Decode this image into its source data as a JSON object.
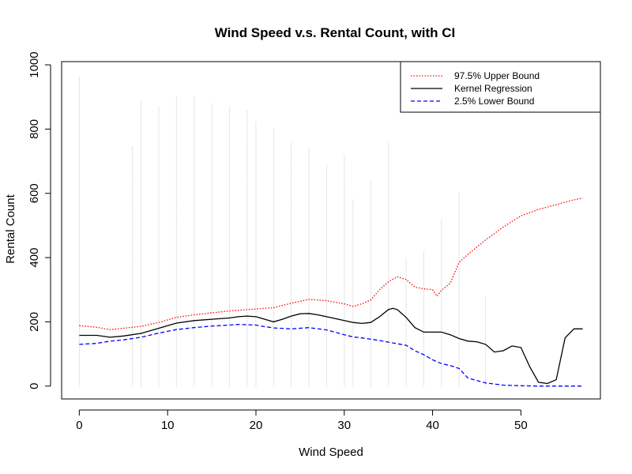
{
  "chart_data": {
    "type": "line",
    "title": "Wind Speed v.s. Rental Count, with CI",
    "xlabel": "Wind Speed",
    "ylabel": "Rental Count",
    "xlim": [
      -2,
      59
    ],
    "ylim": [
      -40,
      1010
    ],
    "xticks": [
      0,
      10,
      20,
      30,
      40,
      50
    ],
    "yticks": [
      0,
      200,
      400,
      600,
      800,
      1000
    ],
    "xtick_labels": [
      "0",
      "10",
      "20",
      "30",
      "40",
      "50"
    ],
    "ytick_labels": [
      "0",
      "200",
      "400",
      "600",
      "800",
      "1000"
    ],
    "legend_position": "top-right",
    "grid": false,
    "series": [
      {
        "name": "97.5% Upper Bound",
        "color": "#ff0000",
        "style": "dotted",
        "x": [
          0,
          2,
          3.5,
          5,
          7,
          9,
          11,
          13,
          15,
          17,
          19,
          20,
          21,
          22,
          24,
          26,
          28,
          30,
          31,
          32,
          33,
          34,
          35,
          36,
          37,
          38,
          39,
          40,
          40.5,
          41,
          42,
          43,
          44,
          46,
          48,
          50,
          52,
          54,
          56,
          57
        ],
        "y": [
          188,
          183,
          176,
          180,
          186,
          198,
          214,
          222,
          228,
          234,
          238,
          240,
          242,
          244,
          258,
          270,
          266,
          256,
          248,
          256,
          268,
          300,
          325,
          340,
          332,
          308,
          303,
          300,
          280,
          298,
          320,
          385,
          410,
          455,
          495,
          530,
          550,
          565,
          580,
          585
        ]
      },
      {
        "name": "Kernel Regression",
        "color": "#000000",
        "style": "solid",
        "x": [
          0,
          2,
          3.5,
          5,
          7,
          9,
          11,
          13,
          15,
          17,
          18,
          19,
          20,
          21,
          22,
          23,
          24,
          25,
          26,
          27,
          28,
          30,
          31,
          32,
          33,
          34,
          35,
          35.5,
          36,
          37,
          38,
          39,
          40,
          41,
          42,
          43,
          44,
          45,
          46,
          47,
          48,
          49,
          50,
          51,
          52,
          53,
          54,
          55,
          56,
          57
        ],
        "y": [
          158,
          158,
          152,
          156,
          164,
          180,
          196,
          204,
          208,
          212,
          216,
          218,
          216,
          208,
          200,
          208,
          218,
          225,
          226,
          222,
          216,
          204,
          198,
          195,
          198,
          216,
          238,
          242,
          238,
          214,
          182,
          168,
          168,
          168,
          160,
          148,
          140,
          138,
          130,
          106,
          110,
          125,
          120,
          60,
          12,
          8,
          20,
          150,
          178,
          178
        ]
      },
      {
        "name": "2.5% Lower Bound",
        "color": "#0000ff",
        "style": "dashed",
        "x": [
          0,
          2,
          3.5,
          5,
          7,
          9,
          11,
          13,
          15,
          17,
          18,
          20,
          21,
          22,
          24,
          26,
          28,
          30,
          31,
          32,
          34,
          36,
          37,
          38,
          39,
          40,
          41,
          42,
          43,
          44,
          46,
          48,
          50,
          52,
          54,
          56,
          57
        ],
        "y": [
          130,
          133,
          140,
          144,
          152,
          165,
          176,
          182,
          187,
          190,
          192,
          190,
          185,
          181,
          178,
          182,
          175,
          160,
          153,
          150,
          142,
          132,
          127,
          110,
          98,
          82,
          70,
          64,
          55,
          25,
          10,
          3,
          1,
          0,
          0,
          0,
          0
        ]
      }
    ],
    "scatter_color": "#bebebe"
  }
}
